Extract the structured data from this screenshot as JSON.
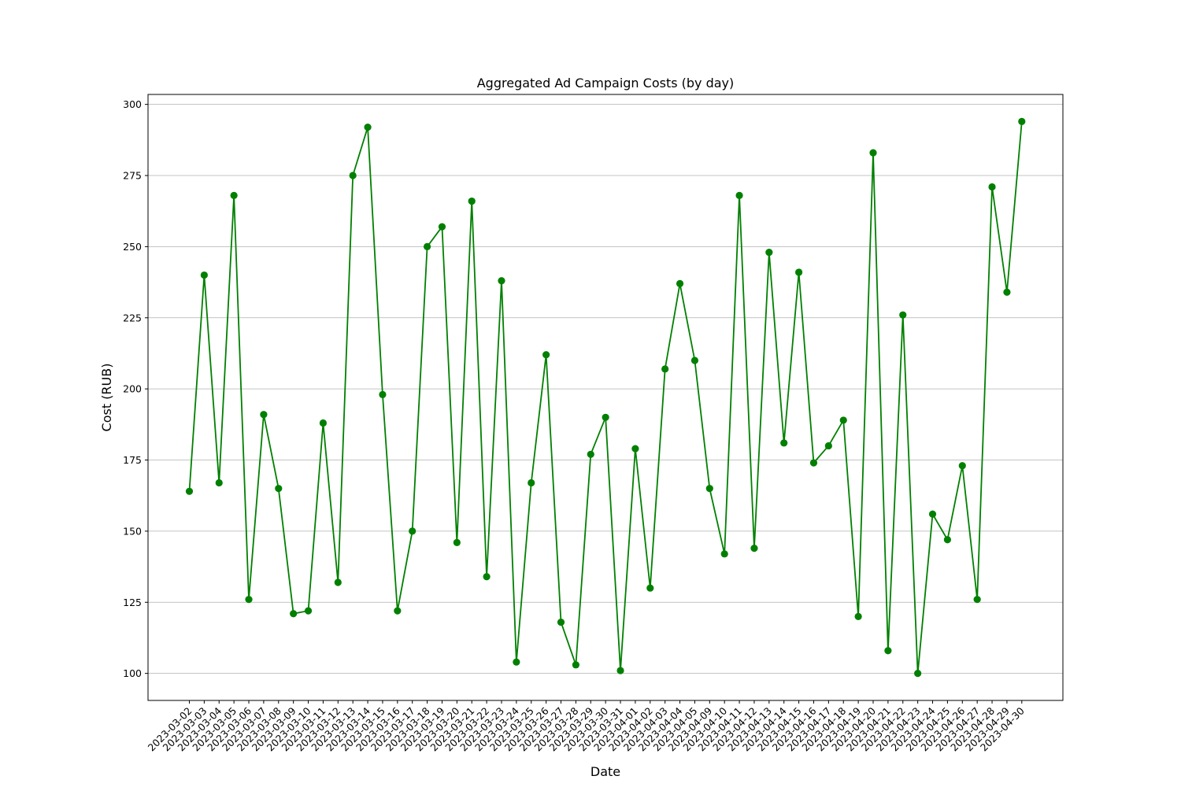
{
  "chart_data": {
    "type": "line",
    "title": "Aggregated Ad Campaign Costs (by day)",
    "xlabel": "Date",
    "ylabel": "Cost (RUB)",
    "ylim": [
      90.5,
      303.5
    ],
    "yticks": [
      100,
      125,
      150,
      175,
      200,
      225,
      250,
      275,
      300
    ],
    "grid": "horizontal",
    "color": "#008000",
    "series": [
      {
        "x": [
          "2023-03-02",
          "2023-03-03",
          "2023-03-04",
          "2023-03-05",
          "2023-03-06",
          "2023-03-07",
          "2023-03-08",
          "2023-03-09",
          "2023-03-10",
          "2023-03-11",
          "2023-03-12",
          "2023-03-13",
          "2023-03-14",
          "2023-03-15",
          "2023-03-16",
          "2023-03-17",
          "2023-03-18",
          "2023-03-19",
          "2023-03-20",
          "2023-03-21",
          "2023-03-22",
          "2023-03-23",
          "2023-03-24",
          "2023-03-25",
          "2023-03-26",
          "2023-03-27",
          "2023-03-28",
          "2023-03-29",
          "2023-03-30",
          "2023-03-31",
          "2023-04-01",
          "2023-04-02",
          "2023-04-03",
          "2023-04-04",
          "2023-04-05",
          "2023-04-09",
          "2023-04-10",
          "2023-04-11",
          "2023-04-12",
          "2023-04-13",
          "2023-04-14",
          "2023-04-15",
          "2023-04-16",
          "2023-04-17",
          "2023-04-18",
          "2023-04-19",
          "2023-04-20",
          "2023-04-21",
          "2023-04-22",
          "2023-04-23",
          "2023-04-24",
          "2023-04-25",
          "2023-04-26",
          "2023-04-27",
          "2023-04-28",
          "2023-04-29",
          "2023-04-30"
        ],
        "values": [
          164,
          240,
          167,
          268,
          126,
          191,
          165,
          121,
          122,
          188,
          132,
          275,
          292,
          198,
          122,
          150,
          250,
          257,
          146,
          266,
          134,
          238,
          104,
          167,
          212,
          118,
          103,
          177,
          190,
          101,
          179,
          130,
          207,
          237,
          210,
          165,
          142,
          268,
          144,
          248,
          181,
          241,
          174,
          180,
          189,
          120,
          283,
          108,
          226,
          100,
          156,
          147,
          173,
          126,
          271,
          234,
          294
        ]
      }
    ]
  }
}
